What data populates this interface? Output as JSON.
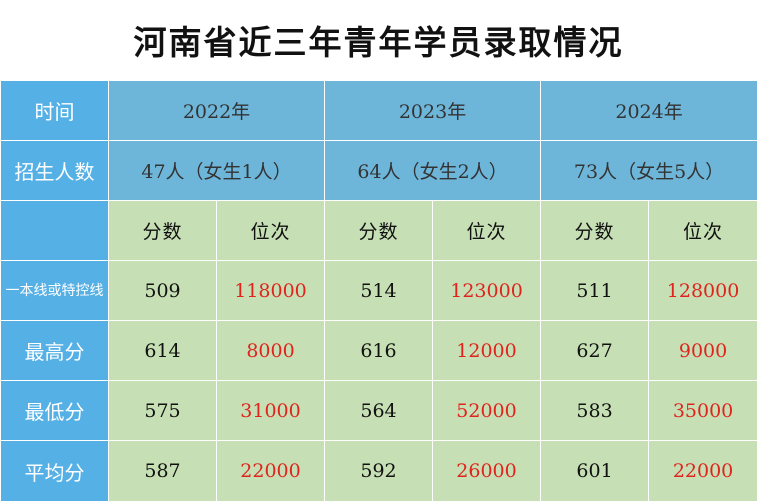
{
  "title": "河南省近三年青年学员录取情况",
  "header": {
    "time_label": "时间",
    "years": [
      "2022年",
      "2023年",
      "2024年"
    ],
    "enroll_label": "招生人数",
    "enrollment": [
      "47人（女生1人）",
      "64人（女生2人）",
      "73人（女生5人）"
    ],
    "score_label": "分数",
    "rank_label": "位次"
  },
  "rows": [
    {
      "label": "一本线或特控线",
      "values": [
        "509",
        "118000",
        "514",
        "123000",
        "511",
        "128000"
      ]
    },
    {
      "label": "最高分",
      "values": [
        "614",
        "8000",
        "616",
        "12000",
        "627",
        "9000"
      ]
    },
    {
      "label": "最低分",
      "values": [
        "575",
        "31000",
        "564",
        "52000",
        "583",
        "35000"
      ]
    },
    {
      "label": "平均分",
      "values": [
        "587",
        "22000",
        "592",
        "26000",
        "601",
        "22000"
      ]
    }
  ],
  "colors": {
    "header_label_bg": "#55b0e6",
    "header_bg": "#6db6da",
    "body_bg": "#c6dfb4",
    "rank_text": "#e0231d"
  }
}
